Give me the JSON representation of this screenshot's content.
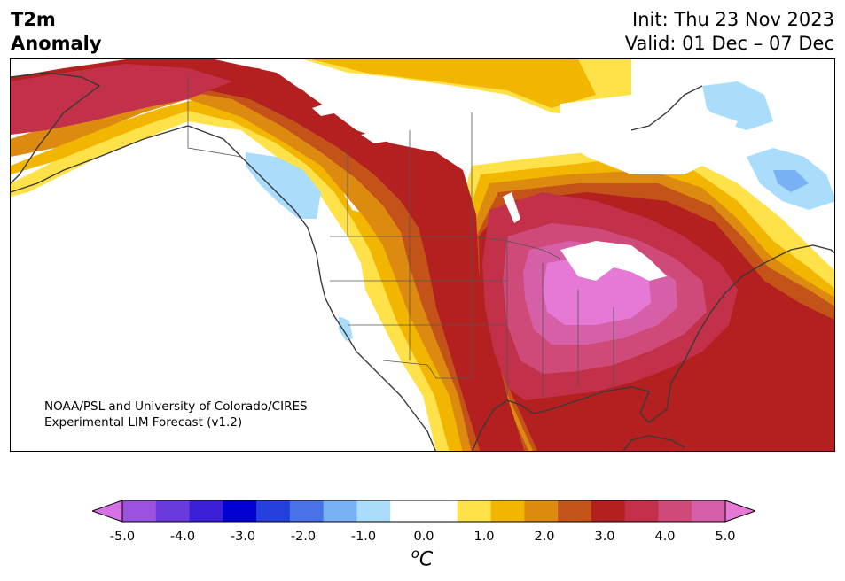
{
  "header": {
    "title_line1": "T2m",
    "title_line2": "Anomaly",
    "init_text": "Init: Thu 23 Nov 2023",
    "valid_text": "Valid: 01 Dec – 07 Dec"
  },
  "map": {
    "credit_line1": "NOAA/PSL and University of Colorado/CIRES",
    "credit_line2": "Experimental LIM Forecast (v1.2)"
  },
  "colorbar": {
    "colors": [
      "#d671e6",
      "#9b52e0",
      "#6a3bdc",
      "#3b1fd6",
      "#0000d0",
      "#2540dc",
      "#4a72e8",
      "#78b2f5",
      "#aadcfc",
      "#ffffff",
      "#ffffff",
      "#ffe14a",
      "#f2b500",
      "#dd8a10",
      "#c4531a",
      "#b3201f",
      "#c2304a",
      "#cf4a78",
      "#d660a8",
      "#e679d6"
    ],
    "tick_labels": [
      "-5.0",
      "-4.0",
      "-3.0",
      "-2.0",
      "-1.0",
      "0.0",
      "1.0",
      "2.0",
      "3.0",
      "4.0",
      "5.0"
    ],
    "unit_base": "o",
    "unit_symbol": "C"
  }
}
